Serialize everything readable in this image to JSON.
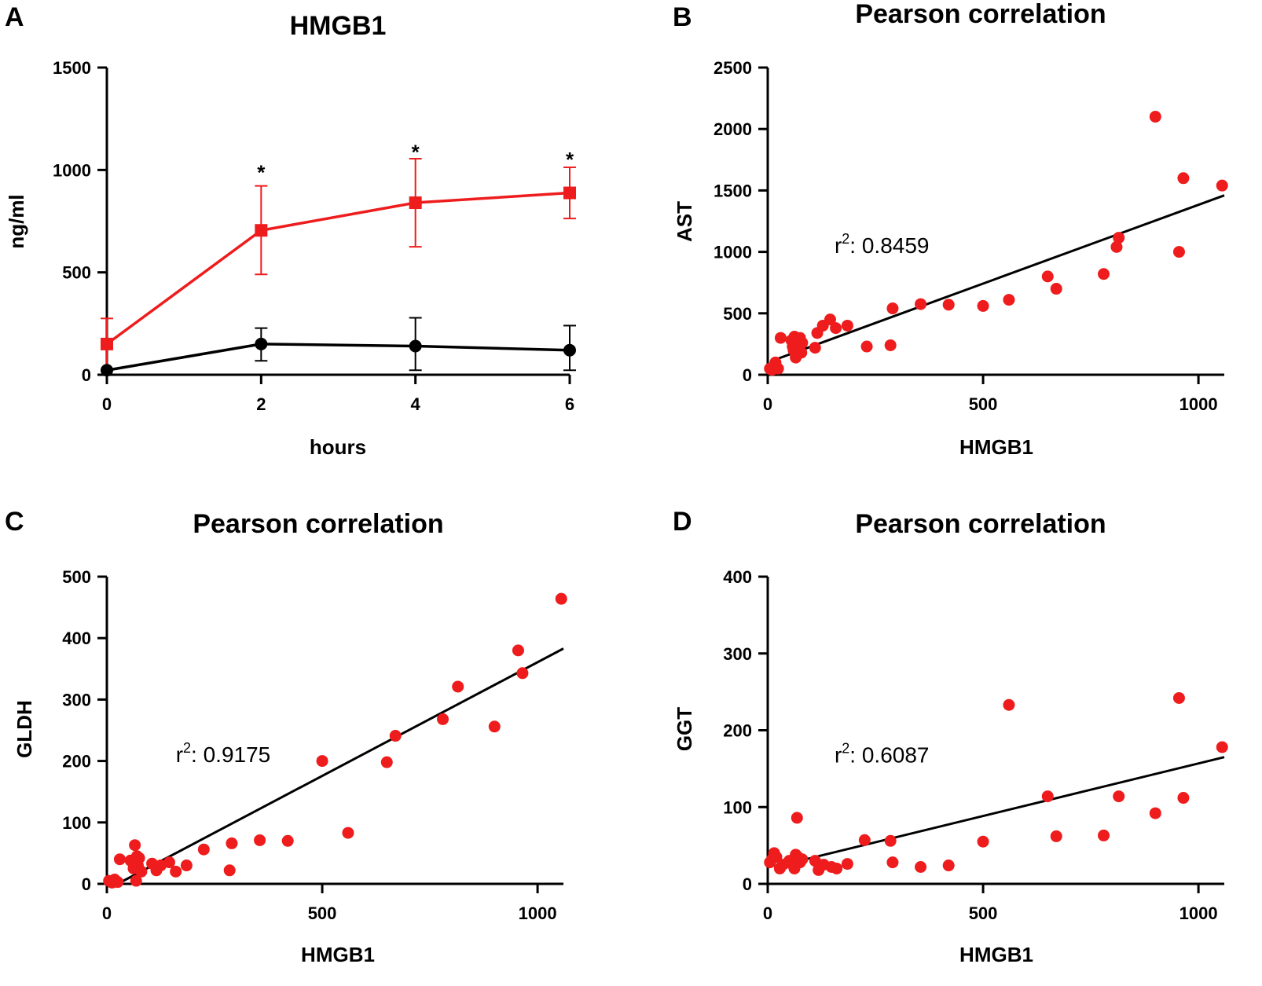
{
  "panels": [
    {
      "letter": "A"
    },
    {
      "letter": "B"
    },
    {
      "letter": "C"
    },
    {
      "letter": "D"
    }
  ],
  "chart_data": [
    {
      "type": "line",
      "title": "HMGB1",
      "xlabel": "hours",
      "ylabel": "ng/ml",
      "xlim": [
        0,
        6
      ],
      "ylim": [
        0,
        1500
      ],
      "xticks": [
        0,
        2,
        4,
        6
      ],
      "yticks": [
        0,
        500,
        1000,
        1500
      ],
      "x": [
        0,
        2,
        4,
        6
      ],
      "series": [
        {
          "color": "#ee1c1c",
          "marker": "square",
          "values": [
            150,
            705,
            840,
            888
          ],
          "error_upper": [
            275,
            922,
            1055,
            1013
          ],
          "error_lower": [
            25,
            490,
            625,
            763
          ]
        },
        {
          "color": "#000000",
          "marker": "circle",
          "values": [
            22,
            150,
            140,
            120
          ],
          "error_upper": [
            22,
            228,
            278,
            240
          ],
          "error_lower": [
            22,
            68,
            22,
            22
          ]
        }
      ],
      "annotations": [
        {
          "text": "*",
          "x": 2,
          "y": 1000
        },
        {
          "text": "*",
          "x": 4,
          "y": 1100
        },
        {
          "text": "*",
          "x": 6,
          "y": 1063
        }
      ],
      "grid": false,
      "legend": "none"
    },
    {
      "type": "scatter",
      "title": "Pearson correlation",
      "xlabel": "HMGB1",
      "ylabel": "AST",
      "xlim": [
        0,
        1060
      ],
      "ylim": [
        0,
        2500
      ],
      "xticks": [
        0,
        500,
        1000
      ],
      "yticks": [
        0,
        500,
        1000,
        1500,
        2000,
        2500
      ],
      "r2_prefix": "r",
      "r2_exp": "2",
      "r2_value": ": 0.8459",
      "annotation_pos": {
        "x": 155,
        "y": 990
      },
      "marker_color": "#ee1c1c",
      "fit": {
        "x": [
          15,
          1060
        ],
        "y": [
          120,
          1460
        ]
      },
      "points": [
        [
          5,
          50
        ],
        [
          10,
          40
        ],
        [
          14,
          60
        ],
        [
          18,
          100
        ],
        [
          24,
          50
        ],
        [
          30,
          300
        ],
        [
          55,
          280
        ],
        [
          58,
          230
        ],
        [
          60,
          200
        ],
        [
          62,
          310
        ],
        [
          65,
          140
        ],
        [
          70,
          210
        ],
        [
          72,
          250
        ],
        [
          75,
          300
        ],
        [
          78,
          180
        ],
        [
          80,
          260
        ],
        [
          110,
          220
        ],
        [
          115,
          340
        ],
        [
          128,
          400
        ],
        [
          145,
          450
        ],
        [
          158,
          380
        ],
        [
          185,
          400
        ],
        [
          230,
          230
        ],
        [
          285,
          240
        ],
        [
          290,
          540
        ],
        [
          355,
          575
        ],
        [
          420,
          570
        ],
        [
          500,
          560
        ],
        [
          560,
          610
        ],
        [
          650,
          800
        ],
        [
          670,
          700
        ],
        [
          780,
          820
        ],
        [
          810,
          1040
        ],
        [
          815,
          1115
        ],
        [
          900,
          2100
        ],
        [
          955,
          1000
        ],
        [
          965,
          1600
        ],
        [
          1055,
          1540
        ]
      ],
      "grid": false,
      "legend": "none"
    },
    {
      "type": "scatter",
      "title": "Pearson correlation",
      "xlabel": "HMGB1",
      "ylabel": "GLDH",
      "xlim": [
        0,
        1060
      ],
      "ylim": [
        0,
        500
      ],
      "xticks": [
        0,
        500,
        1000
      ],
      "yticks": [
        0,
        100,
        200,
        300,
        400,
        500
      ],
      "r2_prefix": "r",
      "r2_exp": "2",
      "r2_value": ": 0.9175",
      "annotation_pos": {
        "x": 160,
        "y": 198
      },
      "marker_color": "#ee1c1c",
      "fit": {
        "x": [
          25,
          1060
        ],
        "y": [
          0,
          383
        ]
      },
      "points": [
        [
          5,
          5
        ],
        [
          12,
          2
        ],
        [
          18,
          7
        ],
        [
          25,
          3
        ],
        [
          30,
          40
        ],
        [
          55,
          38
        ],
        [
          60,
          35
        ],
        [
          62,
          25
        ],
        [
          65,
          63
        ],
        [
          68,
          5
        ],
        [
          70,
          45
        ],
        [
          72,
          30
        ],
        [
          75,
          42
        ],
        [
          80,
          20
        ],
        [
          105,
          33
        ],
        [
          115,
          22
        ],
        [
          125,
          30
        ],
        [
          145,
          35
        ],
        [
          160,
          20
        ],
        [
          185,
          30
        ],
        [
          225,
          56
        ],
        [
          285,
          22
        ],
        [
          290,
          66
        ],
        [
          355,
          71
        ],
        [
          420,
          70
        ],
        [
          500,
          200
        ],
        [
          560,
          83
        ],
        [
          650,
          198
        ],
        [
          670,
          241
        ],
        [
          780,
          268
        ],
        [
          815,
          321
        ],
        [
          900,
          256
        ],
        [
          955,
          380
        ],
        [
          965,
          343
        ],
        [
          1055,
          464
        ]
      ],
      "grid": false,
      "legend": "none"
    },
    {
      "type": "scatter",
      "title": "Pearson correlation",
      "xlabel": "HMGB1",
      "ylabel": "GGT",
      "xlim": [
        0,
        1060
      ],
      "ylim": [
        0,
        400
      ],
      "xticks": [
        0,
        500,
        1000
      ],
      "yticks": [
        0,
        100,
        200,
        300,
        400
      ],
      "r2_prefix": "r",
      "r2_exp": "2",
      "r2_value": ": 0.6087",
      "annotation_pos": {
        "x": 155,
        "y": 158
      },
      "marker_color": "#ee1c1c",
      "fit": {
        "x": [
          15,
          1060
        ],
        "y": [
          22,
          165
        ]
      },
      "points": [
        [
          5,
          28
        ],
        [
          10,
          32
        ],
        [
          15,
          40
        ],
        [
          20,
          35
        ],
        [
          28,
          20
        ],
        [
          35,
          25
        ],
        [
          50,
          30
        ],
        [
          58,
          25
        ],
        [
          62,
          20
        ],
        [
          65,
          38
        ],
        [
          68,
          86
        ],
        [
          70,
          35
        ],
        [
          75,
          28
        ],
        [
          80,
          32
        ],
        [
          110,
          30
        ],
        [
          118,
          18
        ],
        [
          130,
          25
        ],
        [
          148,
          22
        ],
        [
          160,
          20
        ],
        [
          185,
          26
        ],
        [
          225,
          57
        ],
        [
          285,
          56
        ],
        [
          290,
          28
        ],
        [
          355,
          22
        ],
        [
          420,
          24
        ],
        [
          500,
          55
        ],
        [
          560,
          233
        ],
        [
          650,
          114
        ],
        [
          670,
          62
        ],
        [
          780,
          63
        ],
        [
          815,
          114
        ],
        [
          900,
          92
        ],
        [
          955,
          242
        ],
        [
          965,
          112
        ],
        [
          1055,
          178
        ]
      ],
      "grid": false,
      "legend": "none"
    }
  ]
}
